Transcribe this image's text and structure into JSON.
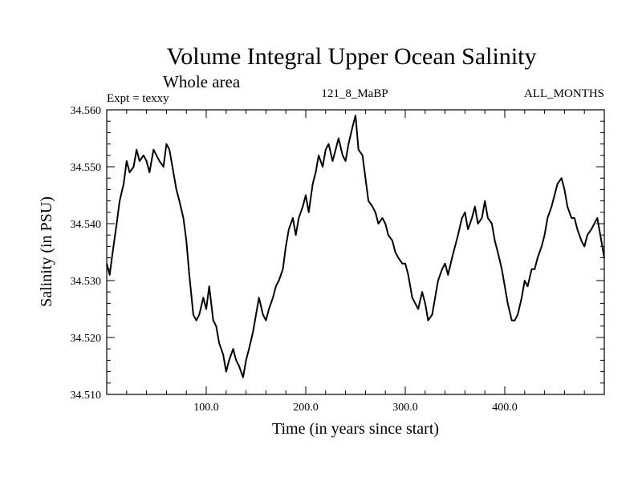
{
  "header": {
    "title": "Volume Integral Upper Ocean Salinity",
    "subtitle": "Whole area",
    "experiment": "Expt = texxy",
    "run_id": "121_8_MaBP",
    "season": "ALL_MONTHS"
  },
  "chart_data": {
    "type": "line",
    "title": "Volume Integral Upper Ocean Salinity",
    "subtitle": "Whole area",
    "xlabel": "Time (in years since start)",
    "ylabel": "Salinity (in PSU)",
    "xlim": [
      0,
      500
    ],
    "ylim": [
      34.51,
      34.56
    ],
    "x_ticks": [
      100,
      200,
      300,
      400
    ],
    "x_tick_labels": [
      "100.0",
      "200.0",
      "300.0",
      "400.0"
    ],
    "y_ticks": [
      34.51,
      34.52,
      34.53,
      34.54,
      34.55,
      34.56
    ],
    "y_tick_labels": [
      "34.510",
      "34.520",
      "34.530",
      "34.540",
      "34.550",
      "34.560"
    ],
    "grid": false,
    "line_color": "#000000",
    "series": [
      {
        "name": "salinity",
        "x": [
          0,
          3,
          6,
          10,
          13,
          17,
          20,
          23,
          27,
          30,
          33,
          37,
          40,
          43,
          47,
          50,
          53,
          57,
          60,
          63,
          67,
          70,
          73,
          77,
          80,
          83,
          87,
          90,
          93,
          97,
          100,
          103,
          107,
          110,
          113,
          117,
          120,
          123,
          127,
          130,
          133,
          137,
          140,
          143,
          147,
          150,
          153,
          157,
          160,
          163,
          167,
          170,
          173,
          177,
          180,
          183,
          187,
          190,
          193,
          197,
          200,
          203,
          207,
          210,
          213,
          217,
          220,
          223,
          227,
          230,
          233,
          237,
          240,
          243,
          247,
          250,
          253,
          257,
          260,
          263,
          267,
          270,
          273,
          277,
          280,
          283,
          287,
          290,
          293,
          297,
          300,
          303,
          307,
          310,
          313,
          317,
          320,
          323,
          327,
          330,
          333,
          337,
          340,
          343,
          347,
          350,
          353,
          357,
          360,
          363,
          367,
          370,
          373,
          377,
          380,
          383,
          387,
          390,
          393,
          397,
          400,
          403,
          407,
          410,
          413,
          417,
          420,
          423,
          427,
          430,
          433,
          437,
          440,
          443,
          447,
          450,
          453,
          457,
          460,
          463,
          467,
          470,
          473,
          477,
          480,
          483,
          487,
          490,
          493,
          497,
          500
        ],
        "values": [
          34.533,
          34.531,
          34.535,
          34.54,
          34.544,
          34.547,
          34.551,
          34.549,
          34.55,
          34.553,
          34.551,
          34.552,
          34.551,
          34.549,
          34.553,
          34.552,
          34.551,
          34.55,
          34.554,
          34.553,
          34.549,
          34.546,
          34.544,
          34.541,
          34.537,
          34.531,
          34.524,
          34.523,
          34.524,
          34.527,
          34.525,
          34.529,
          34.523,
          34.522,
          34.519,
          34.517,
          34.514,
          34.516,
          34.518,
          34.516,
          34.515,
          34.513,
          34.516,
          34.518,
          34.521,
          34.524,
          34.527,
          34.524,
          34.523,
          34.525,
          34.527,
          34.529,
          34.53,
          34.532,
          34.536,
          34.539,
          34.541,
          34.538,
          34.541,
          34.543,
          34.545,
          34.542,
          34.547,
          34.549,
          34.552,
          34.55,
          34.553,
          34.554,
          34.551,
          34.553,
          34.555,
          34.552,
          34.551,
          34.554,
          34.557,
          34.559,
          34.553,
          34.552,
          34.548,
          34.544,
          34.543,
          34.542,
          34.54,
          34.541,
          34.54,
          34.538,
          34.537,
          34.535,
          34.534,
          34.533,
          34.533,
          34.531,
          34.527,
          34.526,
          34.525,
          34.528,
          34.526,
          34.523,
          34.524,
          34.527,
          34.53,
          34.532,
          34.533,
          34.531,
          34.534,
          34.536,
          34.538,
          34.541,
          34.542,
          34.539,
          34.541,
          34.543,
          34.54,
          34.541,
          34.544,
          34.541,
          34.54,
          34.537,
          34.535,
          34.532,
          34.529,
          34.526,
          34.523,
          34.523,
          34.524,
          34.527,
          34.53,
          34.529,
          34.532,
          34.532,
          34.534,
          34.536,
          34.538,
          34.541,
          34.543,
          34.545,
          34.547,
          34.548,
          34.546,
          34.543,
          34.541,
          34.541,
          34.539,
          34.537,
          34.536,
          34.538,
          34.539,
          34.54,
          34.541,
          34.537,
          34.534
        ]
      }
    ]
  }
}
